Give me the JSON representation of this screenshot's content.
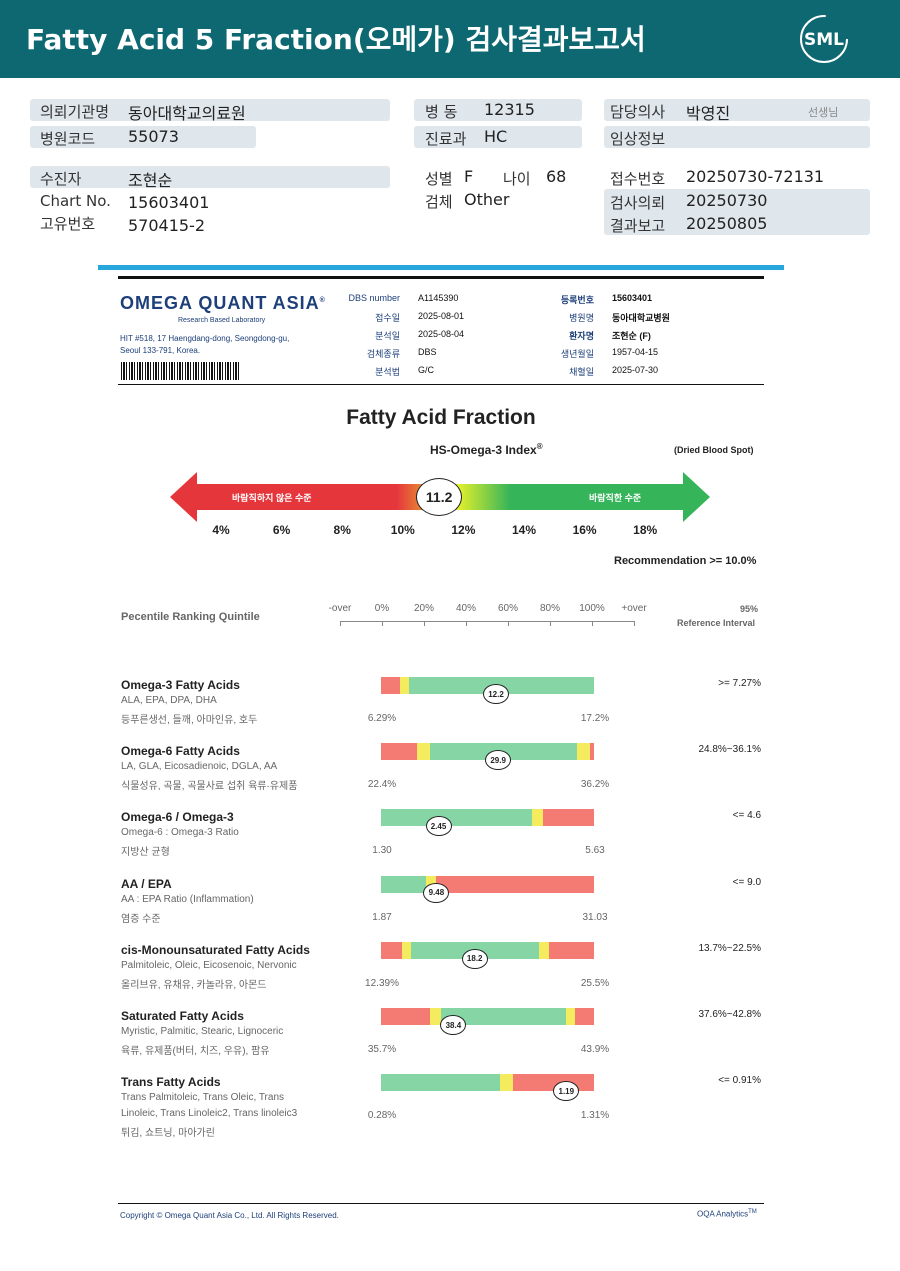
{
  "header": {
    "title": "Fatty Acid 5 Fraction(오메가) 검사결과보고서",
    "logo_text": "SML"
  },
  "patient": {
    "institution_label": "의뢰기관명",
    "institution_value": "동아대학교의료원",
    "hospital_code_label": "병원코드",
    "hospital_code_value": "55073",
    "ward_label": "병 동",
    "ward_value": "12315",
    "dept_label": "진료과",
    "dept_value": "HC",
    "doctor_label": "담당의사",
    "doctor_value": "박영진",
    "doctor_suffix": "선생님",
    "clinical_label": "임상정보",
    "clinical_value": "",
    "name_label": "수진자",
    "name_value": "조현순",
    "chart_label": "Chart No.",
    "chart_value": "15603401",
    "id_label": "고유번호",
    "id_value": "570415-2",
    "sex_label": "성별",
    "sex_value": "F",
    "age_label": "나이",
    "age_value": "68",
    "specimen_label": "검체",
    "specimen_value": "Other",
    "receipt_label": "접수번호",
    "receipt_value": "20250730-72131",
    "request_label": "검사의뢰",
    "request_value": "20250730",
    "report_label": "결과보고",
    "report_value": "20250805"
  },
  "lab": {
    "name": "OMEGA QUANT ASIA",
    "trademark": "®",
    "tagline": "Research Based Laboratory",
    "address1": "HIT #518, 17 Haengdang-dong, Seongdong-gu,",
    "address2": "Seoul 133-791, Korea.",
    "fields_left": [
      {
        "label": "DBS number",
        "value": "A1145390"
      },
      {
        "label": "접수일",
        "value": "2025-08-01"
      },
      {
        "label": "분석일",
        "value": "2025-08-04"
      },
      {
        "label": "검체종류",
        "value": "DBS"
      },
      {
        "label": "분석법",
        "value": "G/C"
      }
    ],
    "fields_right": [
      {
        "label": "등록번호",
        "value": "15603401"
      },
      {
        "label": "병원명",
        "value": "동아대학교병원"
      },
      {
        "label": "환자명",
        "value": "조현순 (F)"
      },
      {
        "label": "생년월일",
        "value": "1957-04-15"
      },
      {
        "label": "채혈일",
        "value": "2025-07-30"
      }
    ]
  },
  "index": {
    "section_title": "Fatty Acid Fraction",
    "index_title": "HS-Omega-3 Index",
    "index_reg": "®",
    "sample_note": "(Dried Blood Spot)",
    "value": "11.2",
    "value_num": 11.2,
    "left_label": "바람직하지 않은 수준",
    "right_label": "바람직한 수준",
    "scale": [
      "4%",
      "6%",
      "8%",
      "10%",
      "12%",
      "14%",
      "16%",
      "18%"
    ],
    "recommendation": "Recommendation  >= 10.0%"
  },
  "quintile": {
    "title": "Pecentile Ranking Quintile",
    "labels": [
      "-over",
      "0%",
      "20%",
      "40%",
      "60%",
      "80%",
      "100%",
      "+over"
    ],
    "ref_title_1": "95%",
    "ref_title_2": "Reference Interval"
  },
  "rows": [
    {
      "title": "Omega-3 Fatty Acids",
      "sub1": "ALA, EPA, DPA, DHA",
      "sub2": "등푸른생선, 들깨, 아마인유, 호두",
      "sub3": "",
      "ref": ">= 7.27%",
      "min": "6.29%",
      "max": "17.2%",
      "value": "12.2",
      "fraction": 0.54,
      "segments": [
        {
          "color": "#f47b74",
          "w": 9
        },
        {
          "color": "#f4ec5e",
          "w": 4
        },
        {
          "color": "#86d6a5",
          "w": 87
        }
      ]
    },
    {
      "title": "Omega-6 Fatty Acids",
      "sub1": "LA, GLA, Eicosadienoic, DGLA, AA",
      "sub2": "식물성유, 곡물, 곡물사료 섭취 육류·유제품",
      "sub3": "",
      "ref": "24.8%~36.1%",
      "min": "22.4%",
      "max": "36.2%",
      "value": "29.9",
      "fraction": 0.55,
      "segments": [
        {
          "color": "#f47b74",
          "w": 17
        },
        {
          "color": "#f4ec5e",
          "w": 6
        },
        {
          "color": "#86d6a5",
          "w": 69
        },
        {
          "color": "#f4ec5e",
          "w": 6
        },
        {
          "color": "#f47b74",
          "w": 2
        }
      ]
    },
    {
      "title": "Omega-6 / Omega-3",
      "sub1": "Omega-6 : Omega-3 Ratio",
      "sub2": "지방산 균형",
      "sub3": "",
      "ref": "<= 4.6",
      "min": "1.30",
      "max": "5.63",
      "value": "2.45",
      "fraction": 0.27,
      "segments": [
        {
          "color": "#86d6a5",
          "w": 71
        },
        {
          "color": "#f4ec5e",
          "w": 5
        },
        {
          "color": "#f47b74",
          "w": 24
        }
      ]
    },
    {
      "title": "AA / EPA",
      "sub1": "AA : EPA Ratio (Inflammation)",
      "sub2": "염증 수준",
      "sub3": "",
      "ref": "<= 9.0",
      "min": "1.87",
      "max": "31.03",
      "value": "9.48",
      "fraction": 0.26,
      "segments": [
        {
          "color": "#86d6a5",
          "w": 21
        },
        {
          "color": "#f4ec5e",
          "w": 5
        },
        {
          "color": "#f47b74",
          "w": 74
        }
      ]
    },
    {
      "title": "cis-Monounsaturated Fatty Acids",
      "sub1": "Palmitoleic, Oleic, Eicosenoic, Nervonic",
      "sub2": "올리브유, 유채유, 카놀라유, 아몬드",
      "sub3": "",
      "ref": "13.7%~22.5%",
      "min": "12.39%",
      "max": "25.5%",
      "value": "18.2",
      "fraction": 0.44,
      "segments": [
        {
          "color": "#f47b74",
          "w": 10
        },
        {
          "color": "#f4ec5e",
          "w": 4
        },
        {
          "color": "#86d6a5",
          "w": 60
        },
        {
          "color": "#f4ec5e",
          "w": 5
        },
        {
          "color": "#f47b74",
          "w": 21
        }
      ]
    },
    {
      "title": "Saturated Fatty Acids",
      "sub1": "Myristic, Palmitic, Stearic, Lignoceric",
      "sub2": "육류, 유제품(버터, 치즈, 우유), 팜유",
      "sub3": "",
      "ref": "37.6%~42.8%",
      "min": "35.7%",
      "max": "43.9%",
      "value": "38.4",
      "fraction": 0.34,
      "segments": [
        {
          "color": "#f47b74",
          "w": 23
        },
        {
          "color": "#f4ec5e",
          "w": 5
        },
        {
          "color": "#86d6a5",
          "w": 59
        },
        {
          "color": "#f4ec5e",
          "w": 4
        },
        {
          "color": "#f47b74",
          "w": 9
        }
      ]
    },
    {
      "title": "Trans Fatty Acids",
      "sub1": "Trans Palmitoleic, Trans Oleic, Trans",
      "sub2": "Linoleic, Trans Linoleic2, Trans linoleic3",
      "sub3": "튀김, 쇼트닝, 마아가린",
      "ref": "<= 0.91%",
      "min": "0.28%",
      "max": "1.31%",
      "value": "1.19",
      "fraction": 0.87,
      "segments": [
        {
          "color": "#86d6a5",
          "w": 56
        },
        {
          "color": "#f4ec5e",
          "w": 6
        },
        {
          "color": "#f47b74",
          "w": 38
        }
      ]
    }
  ],
  "footer": {
    "copyright": "Copyright © Omega Quant Asia Co., Ltd.  All Rights Reserved.",
    "brand": "OQA Analytics",
    "brand_tm": "TM"
  }
}
